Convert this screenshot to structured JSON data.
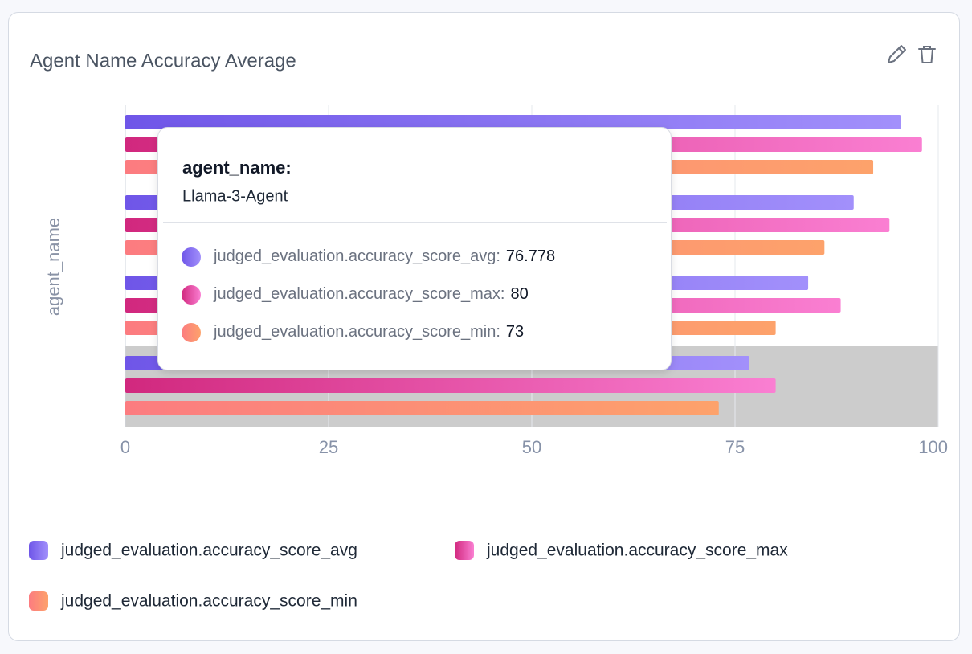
{
  "chart_data": {
    "type": "hbar_grouped",
    "title": "Agent Name Accuracy Average",
    "y_label": "agent_name",
    "categories": [
      null,
      null,
      null,
      "Llama-3-Agent"
    ],
    "series": [
      {
        "name": "judged_evaluation.accuracy_score_avg",
        "gradient": [
          "#6f56e8",
          "#a290fb"
        ],
        "values": [
          95.4,
          89.6,
          84,
          76.778
        ]
      },
      {
        "name": "judged_evaluation.accuracy_score_max",
        "gradient": [
          "#d1287e",
          "#fa7fd2"
        ],
        "values": [
          98,
          94,
          88,
          80
        ]
      },
      {
        "name": "judged_evaluation.accuracy_score_min",
        "gradient": [
          "#fc7c80",
          "#fda26b"
        ],
        "values": [
          92,
          86,
          80,
          73
        ]
      }
    ],
    "xlim": [
      0,
      100
    ],
    "xticks": [
      0,
      25,
      50,
      75,
      100
    ],
    "grid": true,
    "highlight_category": 3
  },
  "tooltip": {
    "title": "agent_name:",
    "rows": [
      {
        "label": "judged_evaluation.accuracy_score_avg:"
      },
      {
        "label": "judged_evaluation.accuracy_score_max:"
      },
      {
        "label": "judged_evaluation.accuracy_score_min:"
      }
    ]
  }
}
